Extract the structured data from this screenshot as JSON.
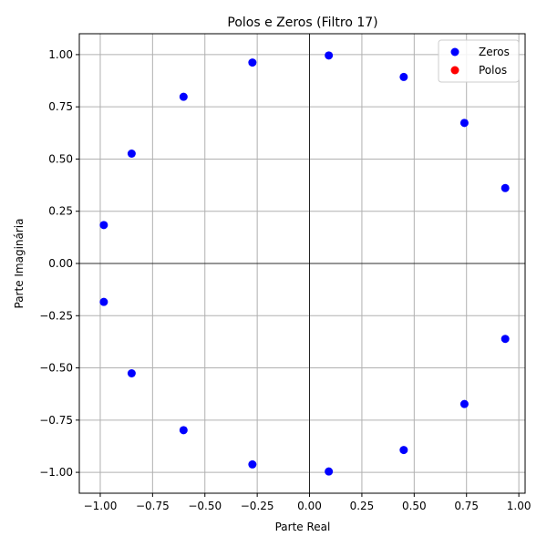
{
  "chart_data": {
    "type": "scatter",
    "title": "Polos e Zeros (Filtro 17)",
    "xlabel": "Parte Real",
    "ylabel": "Parte Imaginária",
    "xlim": [
      -1.1,
      1.03
    ],
    "ylim": [
      -1.1,
      1.1
    ],
    "xticks": [
      -1.0,
      -0.75,
      -0.5,
      -0.25,
      0.0,
      0.25,
      0.5,
      0.75,
      1.0
    ],
    "xtick_labels": [
      "−1.00",
      "−0.75",
      "−0.50",
      "−0.25",
      "0.00",
      "0.25",
      "0.50",
      "0.75",
      "1.00"
    ],
    "yticks": [
      -1.0,
      -0.75,
      -0.5,
      -0.25,
      0.0,
      0.25,
      0.5,
      0.75,
      1.0
    ],
    "ytick_labels": [
      "−1.00",
      "−0.75",
      "−0.50",
      "−0.25",
      "0.00",
      "0.25",
      "0.50",
      "0.75",
      "1.00"
    ],
    "grid": true,
    "legend_position": "top-right",
    "series": [
      {
        "name": "Zeros",
        "color": "#0000ff",
        "points": [
          [
            0.092,
            0.996
          ],
          [
            0.45,
            0.893
          ],
          [
            0.74,
            0.673
          ],
          [
            0.935,
            0.361
          ],
          [
            0.935,
            -0.361
          ],
          [
            0.74,
            -0.673
          ],
          [
            0.45,
            -0.893
          ],
          [
            0.092,
            -0.996
          ],
          [
            -0.273,
            0.962
          ],
          [
            -0.602,
            0.798
          ],
          [
            -0.85,
            0.526
          ],
          [
            -0.983,
            0.184
          ],
          [
            -0.983,
            -0.184
          ],
          [
            -0.85,
            -0.526
          ],
          [
            -0.602,
            -0.798
          ],
          [
            -0.273,
            -0.962
          ]
        ]
      },
      {
        "name": "Polos",
        "color": "#ff0000",
        "points": []
      }
    ]
  }
}
